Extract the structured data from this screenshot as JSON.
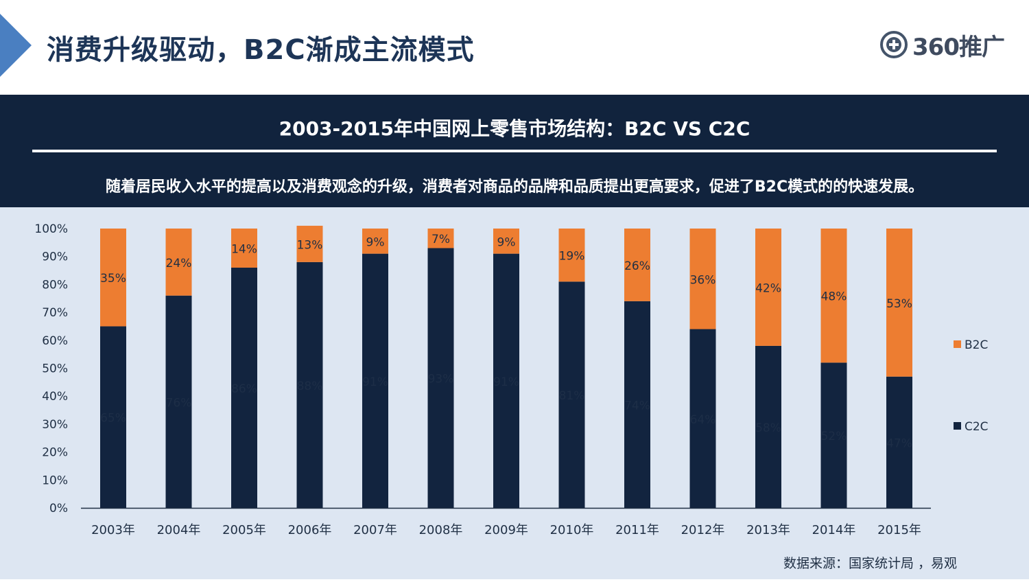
{
  "header": {
    "title": "消费升级驱动，B2C渐成主流模式",
    "logo_text": "360推广"
  },
  "banner": {
    "title": "2003-2015年中国网上零售市场结构：B2C  VS C2C",
    "subtitle": "随着居民收入水平的提高以及消费观念的升级，消费者对商品的品牌和品质提出更高要求，促进了B2C模式的的快速发展。"
  },
  "colors": {
    "c2c": "#12243f",
    "b2c": "#ed7d31",
    "accent": "#4a7fc1"
  },
  "chart_data": {
    "type": "bar",
    "stacked": true,
    "categories": [
      "2003年",
      "2004年",
      "2005年",
      "2006年",
      "2007年",
      "2008年",
      "2009年",
      "2010年",
      "2011年",
      "2012年",
      "2013年",
      "2014年",
      "2015年"
    ],
    "series": [
      {
        "name": "C2C",
        "values": [
          65,
          76,
          86,
          88,
          91,
          93,
          91,
          81,
          74,
          64,
          58,
          52,
          47
        ],
        "labels": [
          "65%",
          "76%",
          "86%",
          "88%",
          "91%",
          "93%",
          "91%",
          "81%",
          "74%",
          "64%",
          "58%",
          "52%",
          "47%"
        ]
      },
      {
        "name": "B2C",
        "values": [
          35,
          24,
          14,
          13,
          9,
          7,
          9,
          19,
          26,
          36,
          42,
          48,
          53
        ],
        "labels": [
          "35%",
          "24%",
          "14%",
          "13%",
          "9%",
          "7%",
          "9%",
          "19%",
          "26%",
          "36%",
          "42%",
          "48%",
          "53%"
        ]
      }
    ],
    "yticks": [
      "0%",
      "10%",
      "20%",
      "30%",
      "40%",
      "50%",
      "60%",
      "70%",
      "80%",
      "90%",
      "100%"
    ],
    "ylim": [
      0,
      100
    ],
    "legend": [
      "B2C",
      "C2C"
    ],
    "legend_position": "right"
  },
  "source": "数据来源：国家统计局 ，易观"
}
